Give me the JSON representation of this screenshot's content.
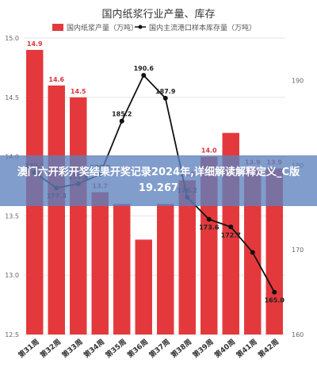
{
  "chart_data": {
    "type": "bar",
    "title": "国内纸浆行业产量、库存",
    "categories": [
      "第31周",
      "第32周",
      "第33周",
      "第34周",
      "第35周",
      "第36周",
      "第37周",
      "第38周",
      "第39周",
      "第40周",
      "第41周",
      "第42周"
    ],
    "series": [
      {
        "name": "国内纸浆产量（万吨）",
        "type": "bar",
        "axis": "left",
        "values": [
          14.9,
          14.6,
          14.5,
          13.7,
          13.6,
          13.3,
          13.6,
          13.8,
          14.0,
          14.2,
          13.9,
          13.9
        ],
        "labels": [
          "14.9",
          "14.6",
          "14.5",
          "13.7",
          "",
          "",
          "",
          "13.8",
          "14.0",
          "",
          "13.9",
          "13.9"
        ]
      },
      {
        "name": "国内主流港口样本库存量（万吨）",
        "type": "line",
        "axis": "right",
        "values": [
          179.1,
          177.3,
          177.8,
          178.9,
          185.2,
          190.6,
          187.9,
          176.2,
          173.6,
          172.7,
          169.7,
          165.0
        ],
        "labels": [
          "179.1",
          "177.3",
          "177.8",
          "178.9",
          "185.2",
          "190.6",
          "187.9",
          "176.2",
          "173.6",
          "172.7",
          "",
          "165.0"
        ]
      }
    ],
    "left_axis": {
      "ylim": [
        12.5,
        15.0
      ],
      "ticks": [
        "15.0",
        "14.5",
        "14.0",
        "13.5",
        "13.0",
        "12.5"
      ]
    },
    "right_axis": {
      "ylim": [
        160,
        195
      ],
      "ticks": [
        "190",
        "180",
        "170",
        "160"
      ]
    },
    "legend_position": "top",
    "colors": {
      "bar": "#e4393c",
      "line": "#111111"
    }
  },
  "overlay_text": "澳门六开彩开奖结果开奖记录2024年,详细解读解释定义_C版19.267"
}
